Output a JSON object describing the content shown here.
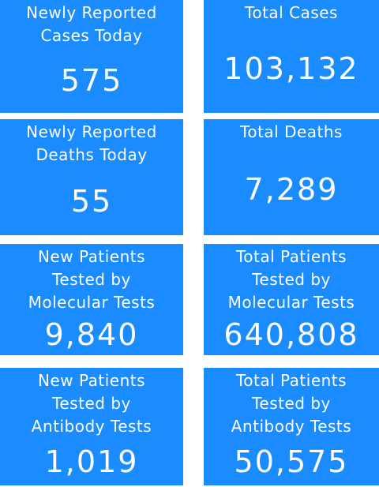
{
  "tiles": [
    {
      "label_lines": [
        "Newly Reported",
        "Cases Today"
      ],
      "value": "575"
    },
    {
      "label_lines": [
        "Total Cases"
      ],
      "value": "103,132"
    },
    {
      "label_lines": [
        "Newly Reported",
        "Deaths Today"
      ],
      "value": "55"
    },
    {
      "label_lines": [
        "Total Deaths"
      ],
      "value": "7,289"
    },
    {
      "label_lines": [
        "New Patients",
        "Tested by",
        "Molecular Tests"
      ],
      "value": "9,840"
    },
    {
      "label_lines": [
        "Total Patients",
        "Tested by",
        "Molecular Tests"
      ],
      "value": "640,808"
    },
    {
      "label_lines": [
        "New Patients",
        "Tested by",
        "Antibody Tests"
      ],
      "value": "1,019"
    },
    {
      "label_lines": [
        "Total Patients",
        "Tested by",
        "Antibody Tests"
      ],
      "value": "50,575"
    }
  ]
}
